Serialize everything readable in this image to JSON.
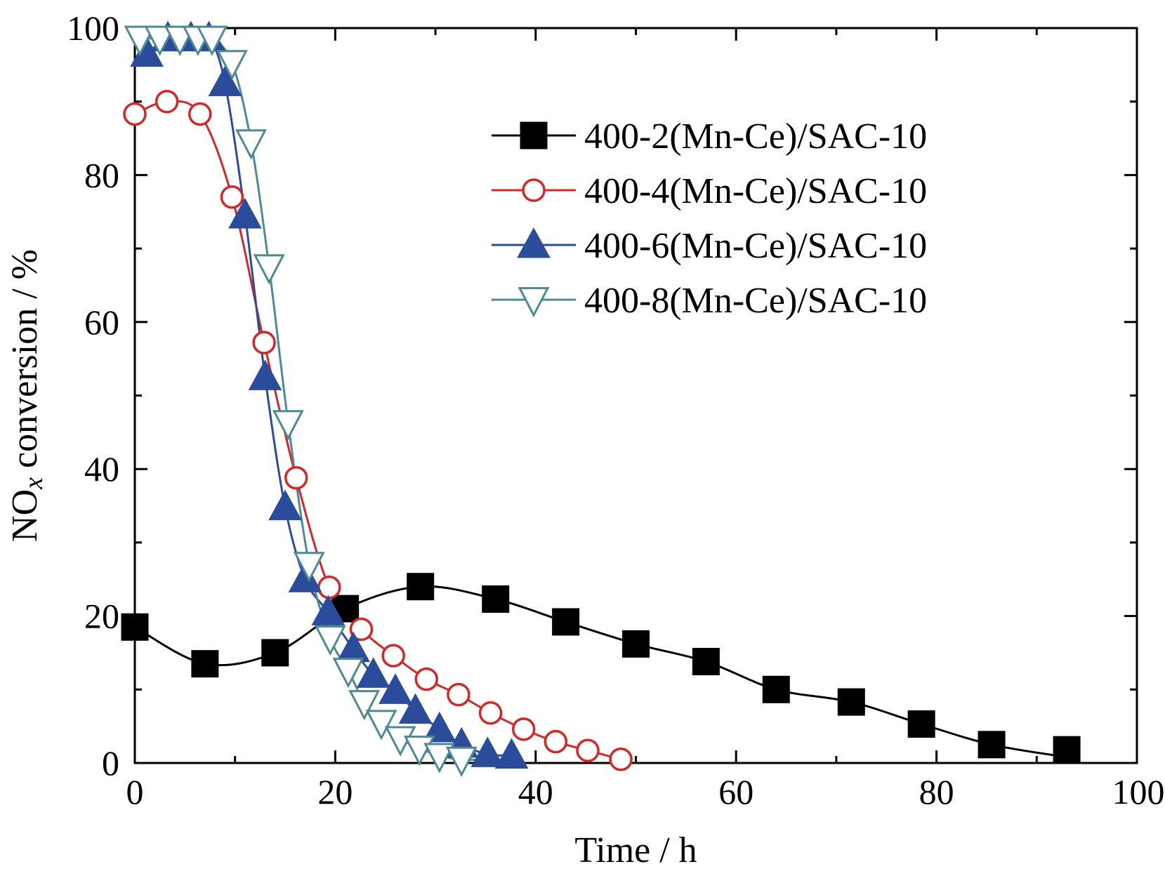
{
  "chart_data": {
    "type": "line",
    "xlabel": "Time / h",
    "ylabel_parts": {
      "prefix": "NO",
      "subscript": "x",
      "suffix": " conversion / %"
    },
    "xlim": [
      0,
      100
    ],
    "ylim": [
      0,
      100
    ],
    "xticks": [
      0,
      20,
      40,
      60,
      80,
      100
    ],
    "yticks": [
      0,
      20,
      40,
      60,
      80,
      100
    ],
    "grid": false,
    "legend_position": "top-right",
    "series": [
      {
        "name": "400-2(Mn-Ce)/SAC-10",
        "color": "#000000",
        "marker": "square-filled",
        "x": [
          0,
          7,
          14,
          21,
          28.5,
          36,
          43,
          50,
          57,
          64,
          71.5,
          78.5,
          85.5,
          93
        ],
        "y": [
          18.5,
          13.5,
          15,
          21,
          24,
          22.3,
          19.2,
          16.2,
          13.8,
          10,
          8.3,
          5.3,
          2.5,
          1.8
        ]
      },
      {
        "name": "400-4(Mn-Ce)/SAC-10",
        "color": "#d62728",
        "marker": "circle-open",
        "x": [
          0,
          3.2,
          6.5,
          9.7,
          12.9,
          16.1,
          19.4,
          22.6,
          25.8,
          29.1,
          32.3,
          35.5,
          38.8,
          42,
          45.2,
          48.5
        ],
        "y": [
          88.3,
          90,
          88.3,
          77,
          57.2,
          38.8,
          23.9,
          18.2,
          14.6,
          11.4,
          9.3,
          6.8,
          4.6,
          2.9,
          1.7,
          0.5
        ]
      },
      {
        "name": "400-6(Mn-Ce)/SAC-10",
        "color": "#2a4c9a",
        "marker": "triangle-up-filled",
        "x": [
          1.2,
          3.3,
          5.6,
          7.4,
          9,
          11,
          13,
          15,
          17,
          19.3,
          21.8,
          23.8,
          26,
          28,
          30.4,
          32.6,
          35.2,
          37.6
        ],
        "y": [
          96.5,
          98.6,
          98.6,
          98.6,
          92.5,
          74.5,
          52.5,
          34.8,
          25,
          20.5,
          15.5,
          12,
          9.8,
          7.1,
          4.6,
          2.5,
          1.2,
          1
        ],
        "curve_end_x": 37.6
      },
      {
        "name": "400-8(Mn-Ce)/SAC-10",
        "color": "#4e8a94",
        "marker": "triangle-down-open",
        "x": [
          0.5,
          2.5,
          4.5,
          6.3,
          7.7,
          9.7,
          11.6,
          13.4,
          15.3,
          17.4,
          19.5,
          21.3,
          22.9,
          24.6,
          26.5,
          28.4,
          30.4,
          32.6
        ],
        "y": [
          98.6,
          98.6,
          98.6,
          98.6,
          98.6,
          95.3,
          84.5,
          67.5,
          46.3,
          27,
          17,
          12.6,
          8.2,
          5.5,
          3.3,
          2,
          1,
          0.5
        ],
        "curve_end_x": 37.6
      }
    ]
  }
}
